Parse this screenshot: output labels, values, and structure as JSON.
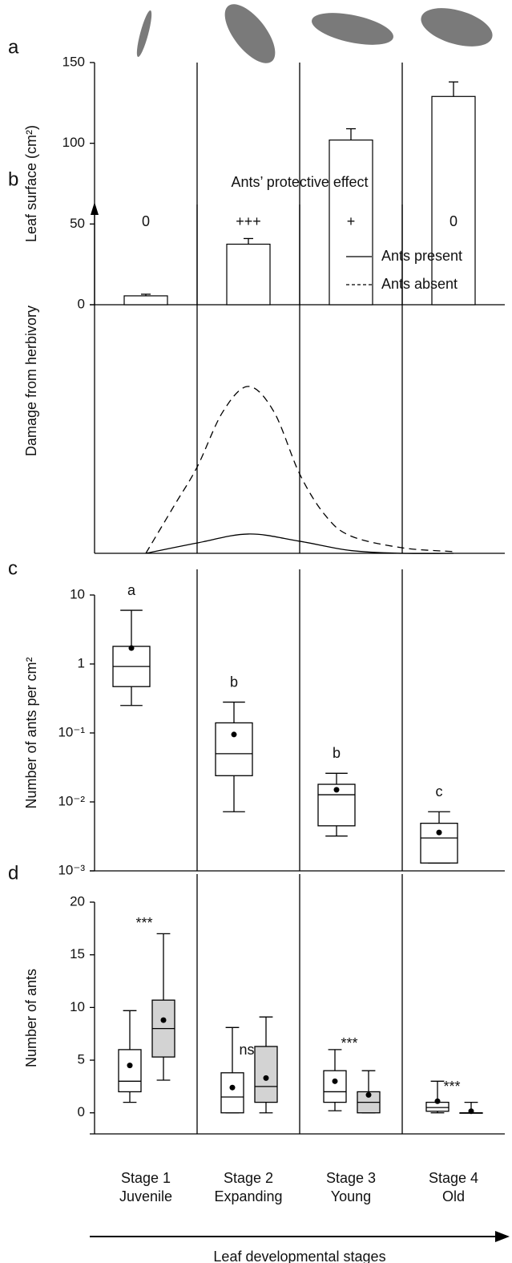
{
  "chart_data": [
    {
      "type": "bar",
      "panel_label": "a",
      "y_label": "Leaf surface (cm²)",
      "values": [
        5.5,
        37.5,
        102,
        129
      ],
      "errors": [
        1,
        3.5,
        7,
        9
      ],
      "color": "#ffffff",
      "ylim": [
        0,
        150
      ],
      "yticks": [
        0,
        50,
        100,
        150
      ]
    },
    {
      "type": "line",
      "panel_label": "b",
      "title": "Ants’ protective effect",
      "y_label": "Damage from herbivory",
      "column_labels": [
        "0",
        "+++",
        "+",
        "0"
      ],
      "xlim": [
        0,
        4
      ],
      "ylim": [
        0,
        100
      ],
      "legend": "upper right",
      "series": [
        {
          "name": "Ants present",
          "color": "#000000",
          "linestyle": "solid",
          "x": [
            0.5,
            1,
            1.5,
            2,
            2.5,
            3,
            3.5
          ],
          "values": [
            0,
            3,
            5.6,
            3.5,
            0.8,
            0,
            0
          ]
        },
        {
          "name": "Ants absent",
          "color": "#000000",
          "linestyle": "dashed",
          "x": [
            0.5,
            0.78,
            1,
            1.25,
            1.5,
            1.75,
            2,
            2.25,
            2.5,
            3,
            3.5
          ],
          "values": [
            0,
            14,
            25,
            41,
            48.4,
            41,
            23,
            11,
            5,
            1.6,
            0.5
          ]
        }
      ]
    },
    {
      "type": "box",
      "panel_label": "c",
      "y_label": "Number of ants per cm²",
      "yscale": "log",
      "ylim": [
        0.001,
        10
      ],
      "yticks": [
        10,
        1,
        {
          "value": 0.1,
          "label": "10⁻¹"
        },
        {
          "value": 0.01,
          "label": "10⁻²"
        },
        {
          "value": 0.001,
          "label": "10⁻³"
        }
      ],
      "letters": [
        "a",
        "b",
        "b",
        "c"
      ],
      "series": [
        {
          "color": "#ffffff",
          "whislo": [
            0.25,
            0.0072,
            0.0032,
            0.0013
          ],
          "q1": [
            0.47,
            0.024,
            0.0045,
            0.0013
          ],
          "med": [
            0.92,
            0.05,
            0.0127,
            0.003
          ],
          "q3": [
            1.8,
            0.14,
            0.018,
            0.0049
          ],
          "whishi": [
            6,
            0.28,
            0.026,
            0.0072
          ],
          "mean": [
            1.7,
            0.095,
            0.015,
            0.0036
          ]
        }
      ]
    },
    {
      "type": "box",
      "panel_label": "d",
      "y_label": "Number of ants",
      "ylim": [
        -2,
        20
      ],
      "yticks": [
        0,
        5,
        10,
        15,
        20
      ],
      "annotations": [
        "***",
        "ns",
        "***",
        "***"
      ],
      "categories": [
        [
          "Stage 1",
          "Juvenile"
        ],
        [
          "Stage 2",
          "Expanding"
        ],
        [
          "Stage 3",
          "Young"
        ],
        [
          "Stage 4",
          "Old"
        ]
      ],
      "x_label": "Leaf developmental stages",
      "series": [
        {
          "color": "#ffffff",
          "whislo": [
            1,
            0,
            0.2,
            0
          ],
          "q1": [
            2,
            0,
            1,
            0.15
          ],
          "med": [
            3,
            1.5,
            2,
            0.5
          ],
          "q3": [
            6,
            3.8,
            4,
            1
          ],
          "whishi": [
            9.7,
            8.1,
            6,
            3
          ],
          "mean": [
            4.5,
            2.4,
            3,
            1.1
          ]
        },
        {
          "color": "#d3d3d3",
          "whislo": [
            3.1,
            0,
            0,
            0
          ],
          "q1": [
            5.3,
            1,
            0,
            0
          ],
          "med": [
            8,
            2.5,
            1,
            0
          ],
          "q3": [
            10.7,
            6.3,
            2,
            0
          ],
          "whishi": [
            17,
            9.1,
            4,
            1
          ],
          "mean": [
            8.8,
            3.3,
            1.7,
            0.15
          ]
        }
      ]
    }
  ]
}
